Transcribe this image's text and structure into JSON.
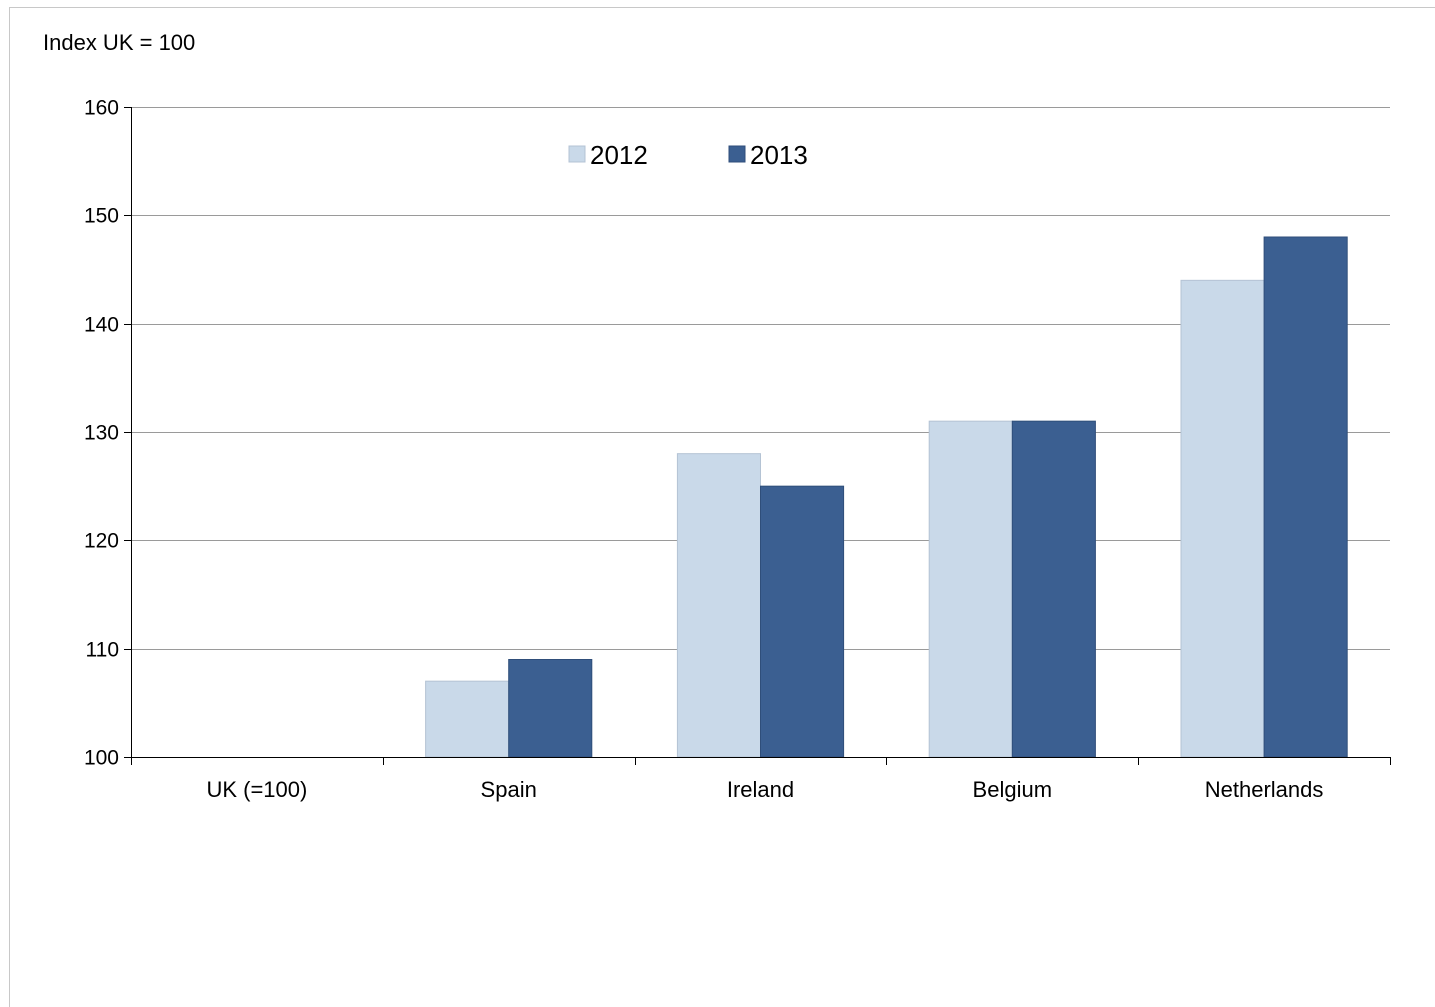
{
  "chart_data": {
    "type": "bar",
    "title": "",
    "unit_label": "Index UK = 100",
    "xlabel": "",
    "ylabel": "",
    "categories": [
      "UK (=100)",
      "Spain",
      "Ireland",
      "Belgium",
      "Netherlands"
    ],
    "series": [
      {
        "name": "2012",
        "color": "#c9d9e9",
        "values": [
          100,
          107,
          128,
          131,
          144
        ]
      },
      {
        "name": "2013",
        "color": "#3b5f91",
        "values": [
          100,
          109,
          125,
          131,
          148
        ]
      }
    ],
    "ylim": [
      100,
      160
    ],
    "yticks": [
      "100",
      "110",
      "120",
      "130",
      "140",
      "150",
      "160"
    ],
    "grid": true,
    "legend_position": "top-center"
  }
}
